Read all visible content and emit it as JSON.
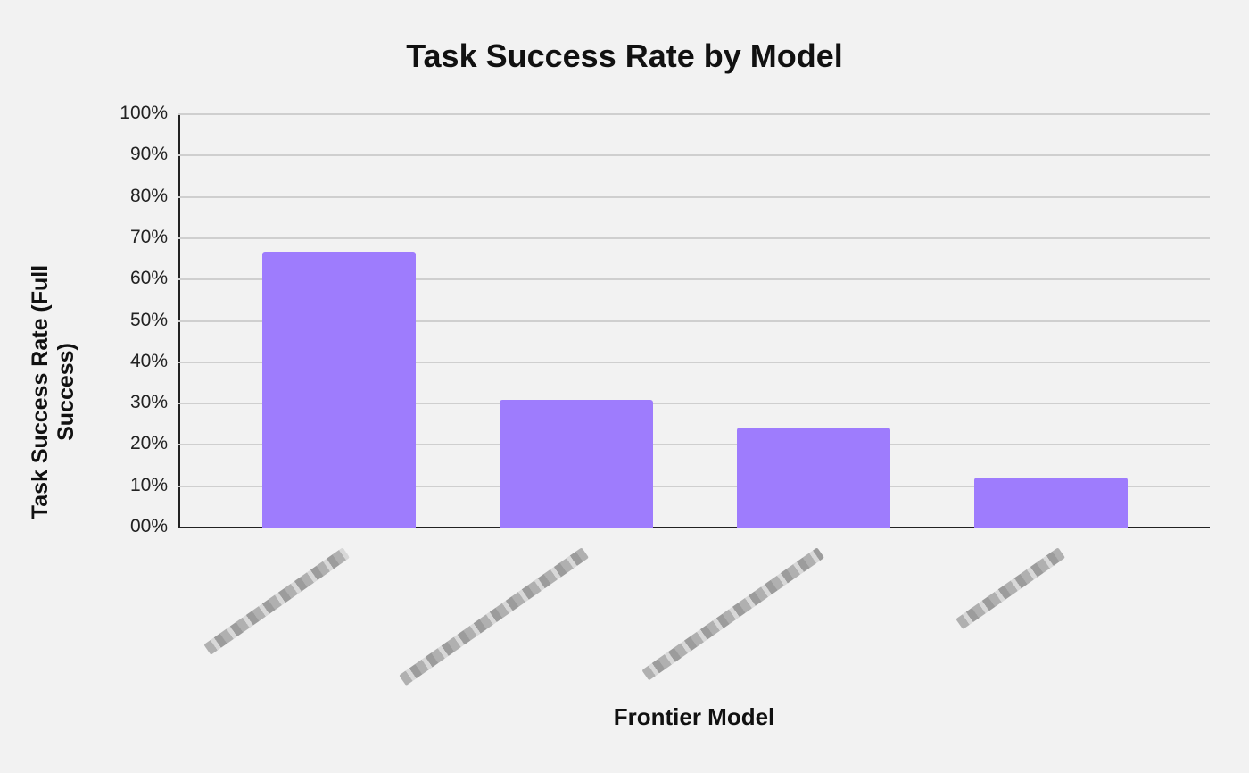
{
  "chart_data": {
    "type": "bar",
    "title": "Task Success Rate by Model",
    "xlabel": "Frontier Model",
    "ylabel": "Task Success Rate (Full Success)",
    "categories": [
      "[redacted model 1]",
      "[redacted model 2]",
      "[redacted model 3]",
      "[redacted model 4]"
    ],
    "values": [
      67,
      31,
      24.5,
      12.3
    ],
    "ylim": [
      0,
      100
    ],
    "yticks": [
      "00%",
      "10%",
      "20%",
      "30%",
      "40%",
      "50%",
      "60%",
      "70%",
      "80%",
      "90%",
      "100%"
    ],
    "grid": true,
    "legend": null,
    "bar_color": "#9e7cfd"
  },
  "labels": {
    "title": "Task Success Rate by Model",
    "xlabel": "Frontier Model",
    "ylabel": "Task Success Rate (Full Success)"
  }
}
